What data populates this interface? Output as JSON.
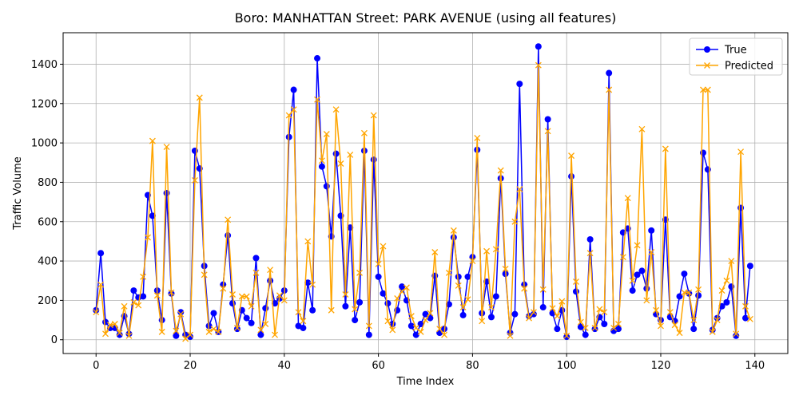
{
  "chart_data": {
    "type": "line",
    "title": "Boro: MANHATTAN Street: PARK AVENUE (using all features)",
    "xlabel": "Time Index",
    "ylabel": "Traffic Volume",
    "xlim": [
      -7,
      147
    ],
    "ylim": [
      -70,
      1560
    ],
    "xticks": [
      0,
      20,
      40,
      60,
      80,
      100,
      120,
      140
    ],
    "yticks": [
      0,
      200,
      400,
      600,
      800,
      1000,
      1200,
      1400
    ],
    "grid": true,
    "legend_position": "top-right",
    "series": [
      {
        "name": "True",
        "color": "#0000ff",
        "marker": "circle",
        "values": [
          150,
          440,
          90,
          60,
          60,
          25,
          120,
          30,
          250,
          215,
          220,
          735,
          630,
          250,
          100,
          745,
          235,
          20,
          140,
          25,
          15,
          960,
          870,
          375,
          70,
          135,
          40,
          280,
          530,
          185,
          55,
          150,
          110,
          85,
          415,
          25,
          160,
          300,
          185,
          210,
          250,
          1030,
          1270,
          70,
          60,
          290,
          150,
          1430,
          880,
          780,
          525,
          945,
          630,
          170,
          570,
          100,
          190,
          960,
          25,
          915,
          320,
          235,
          185,
          80,
          150,
          270,
          200,
          70,
          25,
          80,
          130,
          110,
          325,
          35,
          55,
          180,
          520,
          320,
          125,
          320,
          420,
          965,
          135,
          295,
          115,
          220,
          820,
          335,
          35,
          130,
          1300,
          280,
          120,
          130,
          1490,
          165,
          1120,
          135,
          55,
          150,
          15,
          830,
          245,
          65,
          25,
          510,
          55,
          115,
          80,
          1355,
          45,
          55,
          545,
          565,
          250,
          330,
          350,
          260,
          555,
          130,
          100,
          610,
          115,
          95,
          220,
          335,
          235,
          55,
          225,
          950,
          865,
          50,
          110,
          170,
          190,
          270,
          20,
          670,
          110,
          375
        ]
      },
      {
        "name": "Predicted",
        "color": "#ffa500",
        "marker": "x",
        "values": [
          140,
          280,
          30,
          75,
          80,
          35,
          170,
          20,
          190,
          175,
          320,
          520,
          1010,
          225,
          40,
          980,
          240,
          45,
          130,
          5,
          25,
          810,
          1230,
          330,
          40,
          55,
          40,
          260,
          610,
          230,
          60,
          220,
          220,
          170,
          340,
          50,
          80,
          355,
          25,
          225,
          200,
          1140,
          1170,
          140,
          95,
          500,
          280,
          1220,
          910,
          1045,
          150,
          1170,
          895,
          230,
          940,
          155,
          340,
          1050,
          70,
          1140,
          385,
          475,
          95,
          50,
          210,
          245,
          265,
          120,
          60,
          40,
          100,
          135,
          445,
          55,
          25,
          340,
          555,
          275,
          165,
          205,
          400,
          1025,
          95,
          450,
          165,
          460,
          860,
          360,
          20,
          600,
          765,
          260,
          110,
          140,
          1395,
          255,
          1060,
          160,
          120,
          195,
          20,
          935,
          295,
          90,
          60,
          440,
          60,
          155,
          140,
          1270,
          60,
          80,
          420,
          720,
          300,
          480,
          1070,
          200,
          445,
          150,
          70,
          970,
          140,
          75,
          35,
          240,
          240,
          100,
          255,
          1270,
          1270,
          40,
          100,
          250,
          300,
          400,
          30,
          955,
          170,
          105
        ]
      }
    ]
  }
}
